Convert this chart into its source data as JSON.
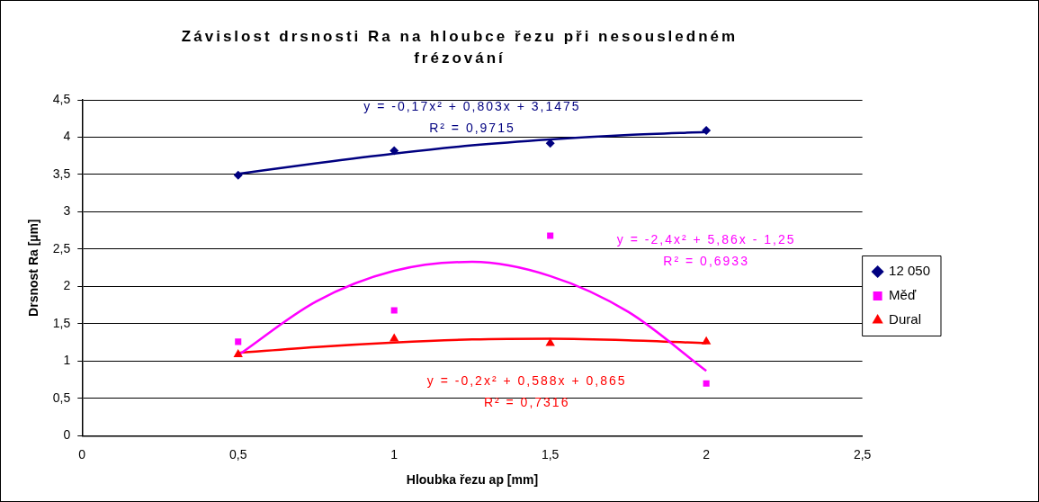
{
  "chart_data": {
    "type": "scatter",
    "title": "Závislost drsnosti Ra na hloubce řezu při nesousledném frézování",
    "xlabel": "Hloubka řezu ap [mm]",
    "ylabel": "Drsnost Ra [µm]",
    "x": [
      0.5,
      1,
      1.5,
      2
    ],
    "series": [
      {
        "name": "12 050",
        "type": "scatter",
        "marker": "diamond",
        "color": "#000080",
        "values": [
          3.49,
          3.82,
          3.92,
          4.09
        ]
      },
      {
        "name": "Měď",
        "type": "scatter",
        "marker": "square",
        "color": "#ff00ff",
        "values": [
          1.26,
          1.68,
          2.68,
          0.7
        ]
      },
      {
        "name": "Dural",
        "type": "scatter",
        "marker": "triangle",
        "color": "#ff0000",
        "values": [
          1.09,
          1.3,
          1.24,
          1.26
        ]
      },
      {
        "type": "line",
        "marker": "none",
        "color": "#000080",
        "x": [
          0.5,
          0.75,
          1,
          1.25,
          1.5,
          1.75,
          2
        ],
        "values": [
          3.51,
          3.65,
          3.78,
          3.89,
          3.97,
          4.03,
          4.07
        ]
      },
      {
        "type": "line",
        "marker": "none",
        "color": "#ff00ff",
        "x": [
          0.5,
          0.75,
          1,
          1.25,
          1.5,
          1.75,
          2
        ],
        "values": [
          1.08,
          1.8,
          2.21,
          2.33,
          2.14,
          1.66,
          0.87
        ]
      },
      {
        "type": "line",
        "marker": "none",
        "color": "#ff0000",
        "x": [
          0.5,
          0.75,
          1,
          1.25,
          1.5,
          1.75,
          2
        ],
        "values": [
          1.11,
          1.19,
          1.25,
          1.29,
          1.3,
          1.28,
          1.24
        ]
      }
    ],
    "annotations": [
      "y = -0,17x² + 0,803x + 3,1475\nR² = 0,9715",
      "y = -2,4x² + 5,86x - 1,25\nR² = 0,6933",
      "y = -0,2x² + 0,588x + 0,865\nR² = 0,7316"
    ],
    "xlim": [
      0,
      2.5
    ],
    "xticks": [
      0,
      {
        "value": 0.5,
        "label": "0,5"
      },
      1,
      {
        "value": 1.5,
        "label": "1,5"
      },
      2,
      {
        "value": 2.5,
        "label": "2,5"
      }
    ],
    "ylim": [
      0,
      4.5
    ],
    "yticks": [
      0,
      {
        "value": 0.5,
        "label": "0,5"
      },
      1,
      {
        "value": 1.5,
        "label": "1,5"
      },
      2,
      {
        "value": 2.5,
        "label": "2,5"
      },
      3,
      {
        "value": 3.5,
        "label": "3,5"
      },
      4,
      {
        "value": 4.5,
        "label": "4,5"
      }
    ],
    "grid": "y",
    "legend": "right"
  }
}
